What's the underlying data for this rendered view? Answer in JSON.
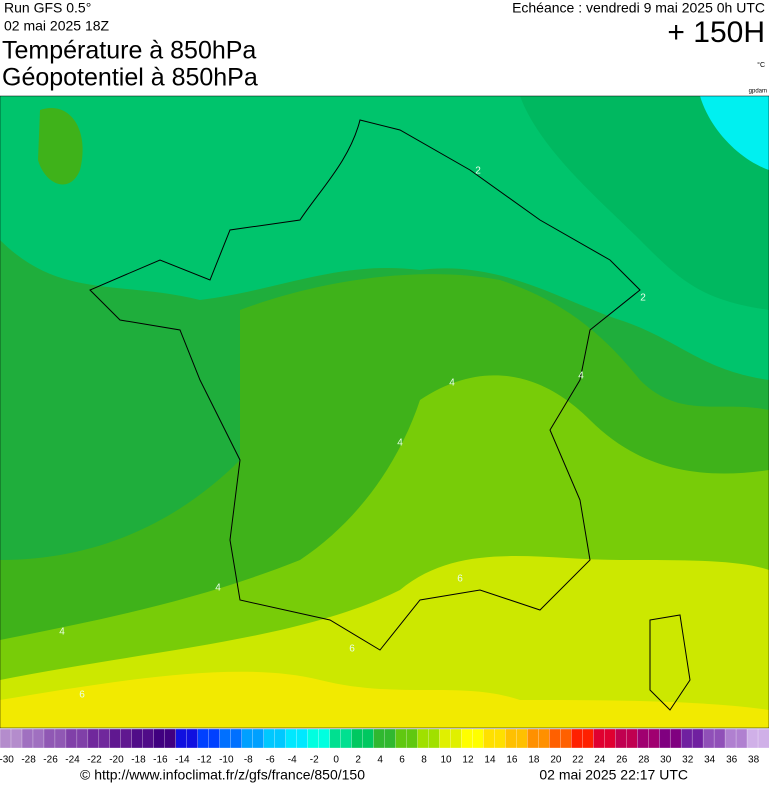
{
  "header": {
    "run": "Run GFS 0.5°",
    "run_date": "02 mai 2025 18Z",
    "title_line1": "Température à 850hPa",
    "title_line2": "Géopotentiel à 850hPa",
    "valid": "Echéance : vendredi 9 mai 2025 0h UTC",
    "lead": "+ 150H",
    "unit": "°C",
    "unit2": "gpdam"
  },
  "contour_labels": [
    "2",
    "2",
    "4",
    "4",
    "4",
    "4",
    "4",
    "6",
    "6",
    "6"
  ],
  "legend": {
    "labels": [
      -30,
      -28,
      -26,
      -24,
      -22,
      -20,
      -18,
      -16,
      -14,
      -12,
      -10,
      -8,
      -6,
      -4,
      -2,
      0,
      2,
      4,
      6,
      8,
      10,
      12,
      14,
      16,
      18,
      20,
      22,
      24,
      26,
      28,
      30,
      32,
      34,
      36,
      38
    ],
    "colors": [
      "#b48ccc",
      "#a070c0",
      "#9058b4",
      "#8040a8",
      "#70289c",
      "#601890",
      "#500c88",
      "#400080",
      "#1010e0",
      "#0040ff",
      "#0070ff",
      "#00a0ff",
      "#00c8ff",
      "#00e8ff",
      "#00ffe0",
      "#00e090",
      "#00c860",
      "#30b830",
      "#60c810",
      "#a0e000",
      "#e0f000",
      "#ffff00",
      "#ffe000",
      "#ffc000",
      "#ff9000",
      "#ff6000",
      "#ff2000",
      "#e00030",
      "#c00050",
      "#a00070",
      "#800080",
      "#7020a0",
      "#9050b8",
      "#b080d0",
      "#d0b0e8"
    ]
  },
  "footer": {
    "source": "© http://www.infoclimat.fr/z/gfs/france/850/150",
    "generated": "02 mai 2025 22:17 UTC"
  }
}
